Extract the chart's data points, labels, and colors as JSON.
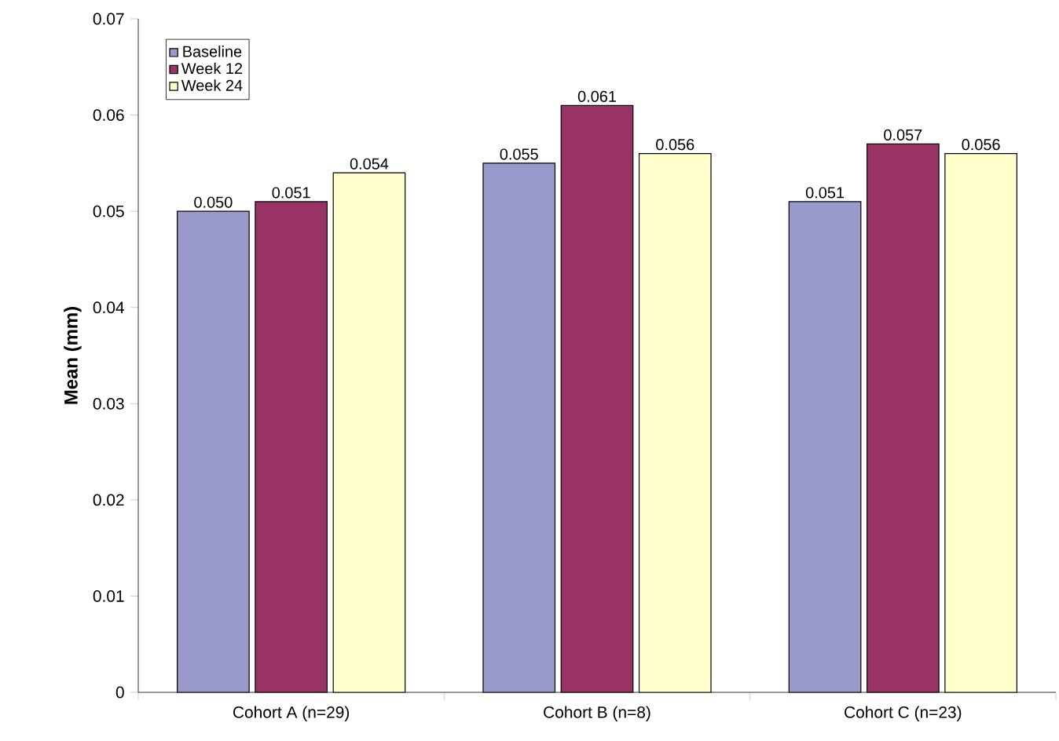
{
  "chart_data": {
    "type": "bar",
    "ylabel": "**Mean (mm)**",
    "categories": [
      "Cohort A (n=29)",
      "Cohort B (n=8)",
      "Cohort C (n=23)"
    ],
    "series": [
      {
        "name": "Baseline",
        "color": "#9999cc",
        "values": [
          0.05,
          0.055,
          0.051
        ],
        "value_labels": [
          "0.050",
          "0.055",
          "0.051"
        ]
      },
      {
        "name": "Week 12",
        "color": "#993366",
        "values": [
          0.051,
          0.061,
          0.057
        ],
        "value_labels": [
          "0.051",
          "0.061",
          "0.057"
        ]
      },
      {
        "name": "Week 24",
        "color": "#ffffcc",
        "values": [
          0.054,
          0.056,
          0.056
        ],
        "value_labels": [
          "0.054",
          "0.056",
          "0.056"
        ]
      }
    ],
    "ylim": [
      0,
      0.07
    ],
    "yticks": [
      0,
      0.01,
      0.02,
      0.03,
      0.04,
      0.05,
      0.06,
      0.07
    ],
    "legend": "top left"
  }
}
